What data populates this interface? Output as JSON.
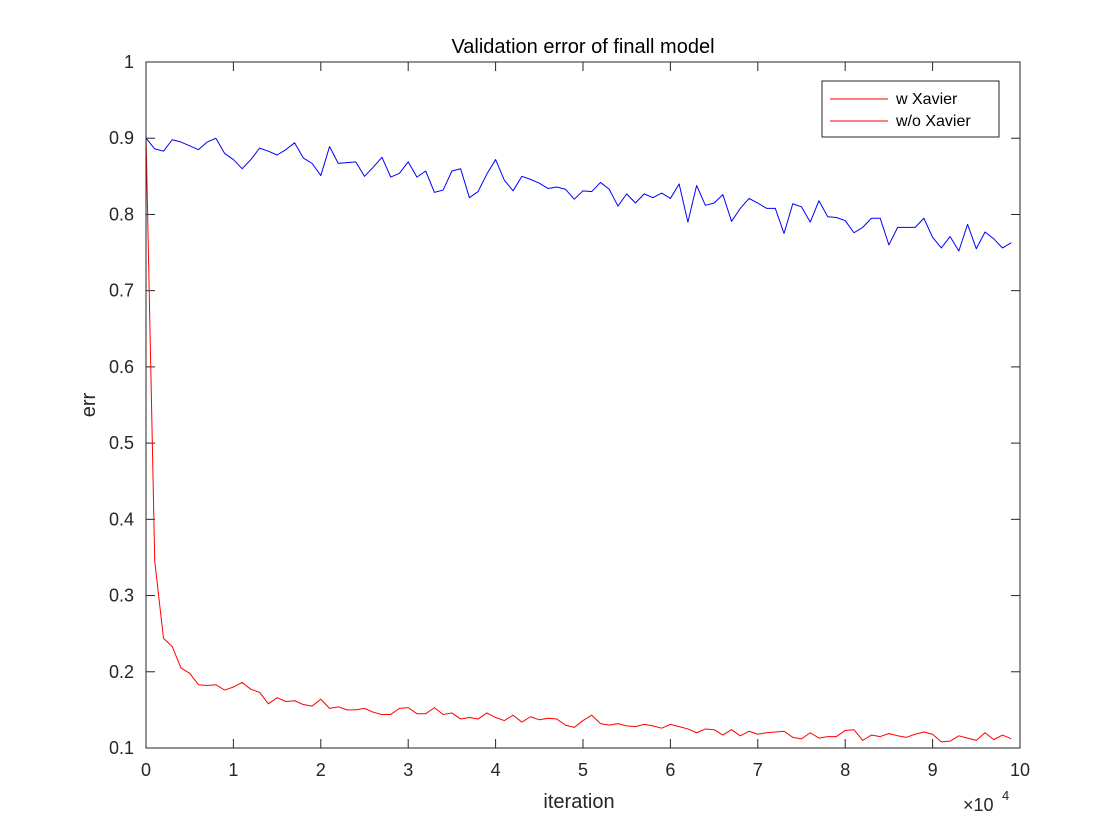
{
  "chart_data": {
    "type": "line",
    "title": "Validation error of finall model",
    "xlabel": "iteration",
    "ylabel": "err",
    "xlim": [
      0,
      100000
    ],
    "ylim": [
      0.1,
      1
    ],
    "xticks": [
      0,
      10000,
      20000,
      30000,
      40000,
      50000,
      60000,
      70000,
      80000,
      90000,
      100000
    ],
    "xtick_labels": [
      "0",
      "1",
      "2",
      "3",
      "4",
      "5",
      "6",
      "7",
      "8",
      "9",
      "10"
    ],
    "x_exponent_base": "×10",
    "x_exponent_power": "4",
    "yticks": [
      0.1,
      0.2,
      0.3,
      0.4,
      0.5,
      0.6,
      0.7,
      0.8,
      0.9,
      1
    ],
    "ytick_labels": [
      "0.1",
      "0.2",
      "0.3",
      "0.4",
      "0.5",
      "0.6",
      "0.7",
      "0.8",
      "0.9",
      "1"
    ],
    "grid": false,
    "legend_position": "top-right",
    "x": [
      0,
      1000,
      2000,
      3000,
      4000,
      5000,
      6000,
      7000,
      8000,
      9000,
      10000,
      11000,
      12000,
      13000,
      14000,
      15000,
      16000,
      17000,
      18000,
      19000,
      20000,
      21000,
      22000,
      23000,
      24000,
      25000,
      26000,
      27000,
      28000,
      29000,
      30000,
      31000,
      32000,
      33000,
      34000,
      35000,
      36000,
      37000,
      38000,
      39000,
      40000,
      41000,
      42000,
      43000,
      44000,
      45000,
      46000,
      47000,
      48000,
      49000,
      50000,
      51000,
      52000,
      53000,
      54000,
      55000,
      56000,
      57000,
      58000,
      59000,
      60000,
      61000,
      62000,
      63000,
      64000,
      65000,
      66000,
      67000,
      68000,
      69000,
      70000,
      71000,
      72000,
      73000,
      74000,
      75000,
      76000,
      77000,
      78000,
      79000,
      80000,
      81000,
      82000,
      83000,
      84000,
      85000,
      86000,
      87000,
      88000,
      89000,
      90000,
      91000,
      92000,
      93000,
      94000,
      95000,
      96000,
      97000,
      98000,
      99000
    ],
    "series": [
      {
        "name": "w Xavier",
        "color": "#0000ff",
        "values": [
          0.9,
          0.886,
          0.883,
          0.898,
          0.895,
          0.89,
          0.885,
          0.895,
          0.9,
          0.88,
          0.872,
          0.86,
          0.872,
          0.887,
          0.883,
          0.878,
          0.885,
          0.894,
          0.874,
          0.867,
          0.851,
          0.889,
          0.867,
          0.868,
          0.869,
          0.85,
          0.862,
          0.875,
          0.849,
          0.854,
          0.869,
          0.849,
          0.857,
          0.829,
          0.832,
          0.857,
          0.86,
          0.822,
          0.83,
          0.853,
          0.872,
          0.845,
          0.831,
          0.85,
          0.846,
          0.841,
          0.834,
          0.836,
          0.833,
          0.82,
          0.831,
          0.83,
          0.842,
          0.833,
          0.811,
          0.827,
          0.815,
          0.827,
          0.822,
          0.828,
          0.821,
          0.84,
          0.79,
          0.838,
          0.812,
          0.815,
          0.826,
          0.791,
          0.808,
          0.821,
          0.815,
          0.808,
          0.808,
          0.775,
          0.814,
          0.81,
          0.79,
          0.818,
          0.797,
          0.796,
          0.792,
          0.776,
          0.783,
          0.795,
          0.795,
          0.76,
          0.783,
          0.783,
          0.783,
          0.795,
          0.77,
          0.756,
          0.771,
          0.752,
          0.787,
          0.755,
          0.777,
          0.768,
          0.756,
          0.763
        ]
      },
      {
        "name": "w/o Xavier",
        "color": "#ff0000",
        "values": [
          0.905,
          0.345,
          0.244,
          0.233,
          0.205,
          0.198,
          0.183,
          0.182,
          0.183,
          0.176,
          0.18,
          0.186,
          0.177,
          0.173,
          0.158,
          0.166,
          0.161,
          0.162,
          0.157,
          0.155,
          0.164,
          0.152,
          0.154,
          0.15,
          0.15,
          0.152,
          0.147,
          0.144,
          0.144,
          0.152,
          0.153,
          0.145,
          0.145,
          0.153,
          0.144,
          0.146,
          0.138,
          0.14,
          0.138,
          0.146,
          0.14,
          0.136,
          0.143,
          0.134,
          0.141,
          0.137,
          0.139,
          0.138,
          0.13,
          0.127,
          0.136,
          0.143,
          0.132,
          0.13,
          0.132,
          0.129,
          0.128,
          0.131,
          0.129,
          0.126,
          0.131,
          0.128,
          0.125,
          0.12,
          0.125,
          0.124,
          0.117,
          0.124,
          0.116,
          0.122,
          0.118,
          0.12,
          0.121,
          0.122,
          0.114,
          0.112,
          0.12,
          0.113,
          0.115,
          0.115,
          0.123,
          0.124,
          0.11,
          0.117,
          0.115,
          0.119,
          0.116,
          0.114,
          0.118,
          0.121,
          0.118,
          0.108,
          0.109,
          0.116,
          0.113,
          0.11,
          0.12,
          0.111,
          0.117,
          0.112
        ]
      }
    ]
  }
}
